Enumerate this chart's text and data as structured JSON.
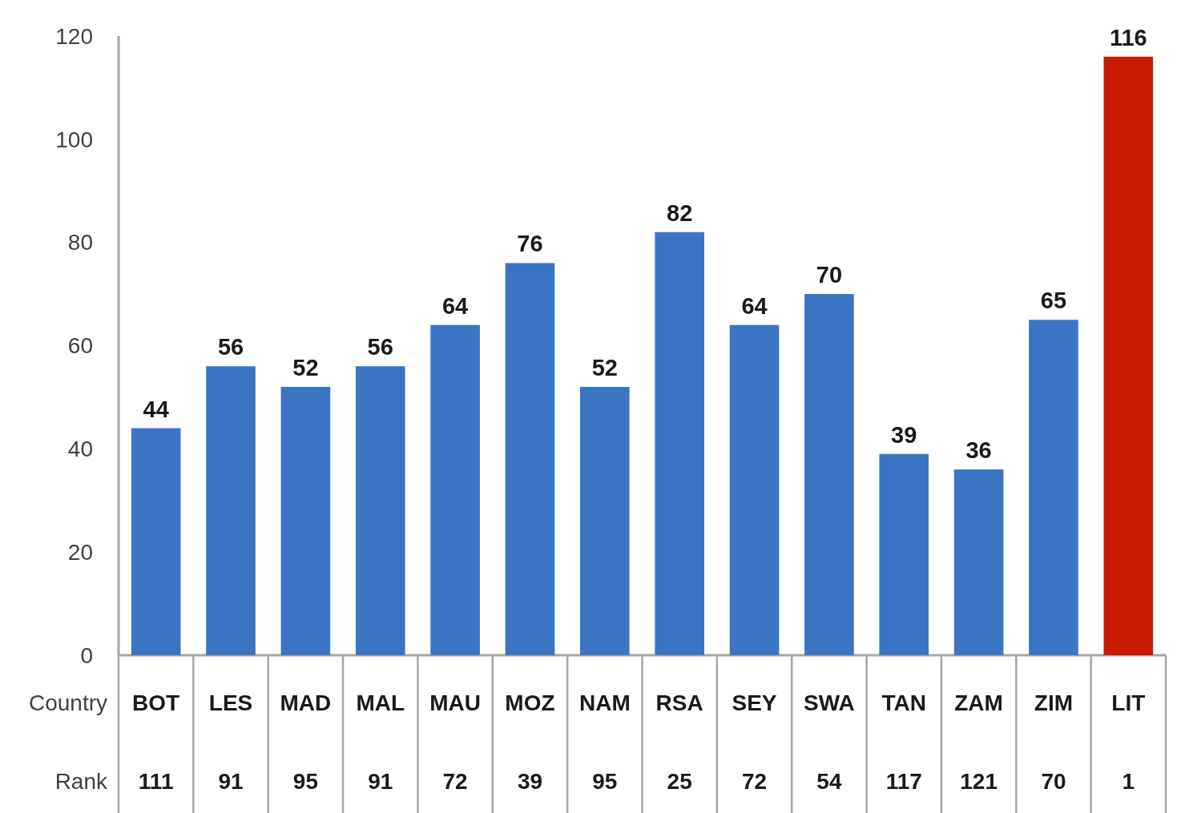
{
  "chart_data": {
    "type": "bar",
    "xlabel": "Country",
    "categories": [
      "BOT",
      "LES",
      "MAD",
      "MAL",
      "MAU",
      "MOZ",
      "NAM",
      "RSA",
      "SEY",
      "SWA",
      "TAN",
      "ZAM",
      "ZIM",
      "LIT"
    ],
    "values": [
      44,
      56,
      52,
      56,
      64,
      76,
      52,
      82,
      64,
      70,
      39,
      36,
      65,
      116
    ],
    "colors": [
      "#3a75c4",
      "#3a75c4",
      "#3a75c4",
      "#3a75c4",
      "#3a75c4",
      "#3a75c4",
      "#3a75c4",
      "#3a75c4",
      "#3a75c4",
      "#3a75c4",
      "#3a75c4",
      "#3a75c4",
      "#3a75c4",
      "#c81a00"
    ],
    "ylim": [
      0,
      120
    ],
    "yticks": [
      0,
      20,
      40,
      60,
      80,
      100,
      120
    ],
    "data_labels": true,
    "annotations": [
      "Rank",
      "111",
      "91",
      "95",
      "91",
      "72",
      "39",
      "95",
      "25",
      "72",
      "54",
      "117",
      "121",
      "70",
      "1"
    ]
  }
}
